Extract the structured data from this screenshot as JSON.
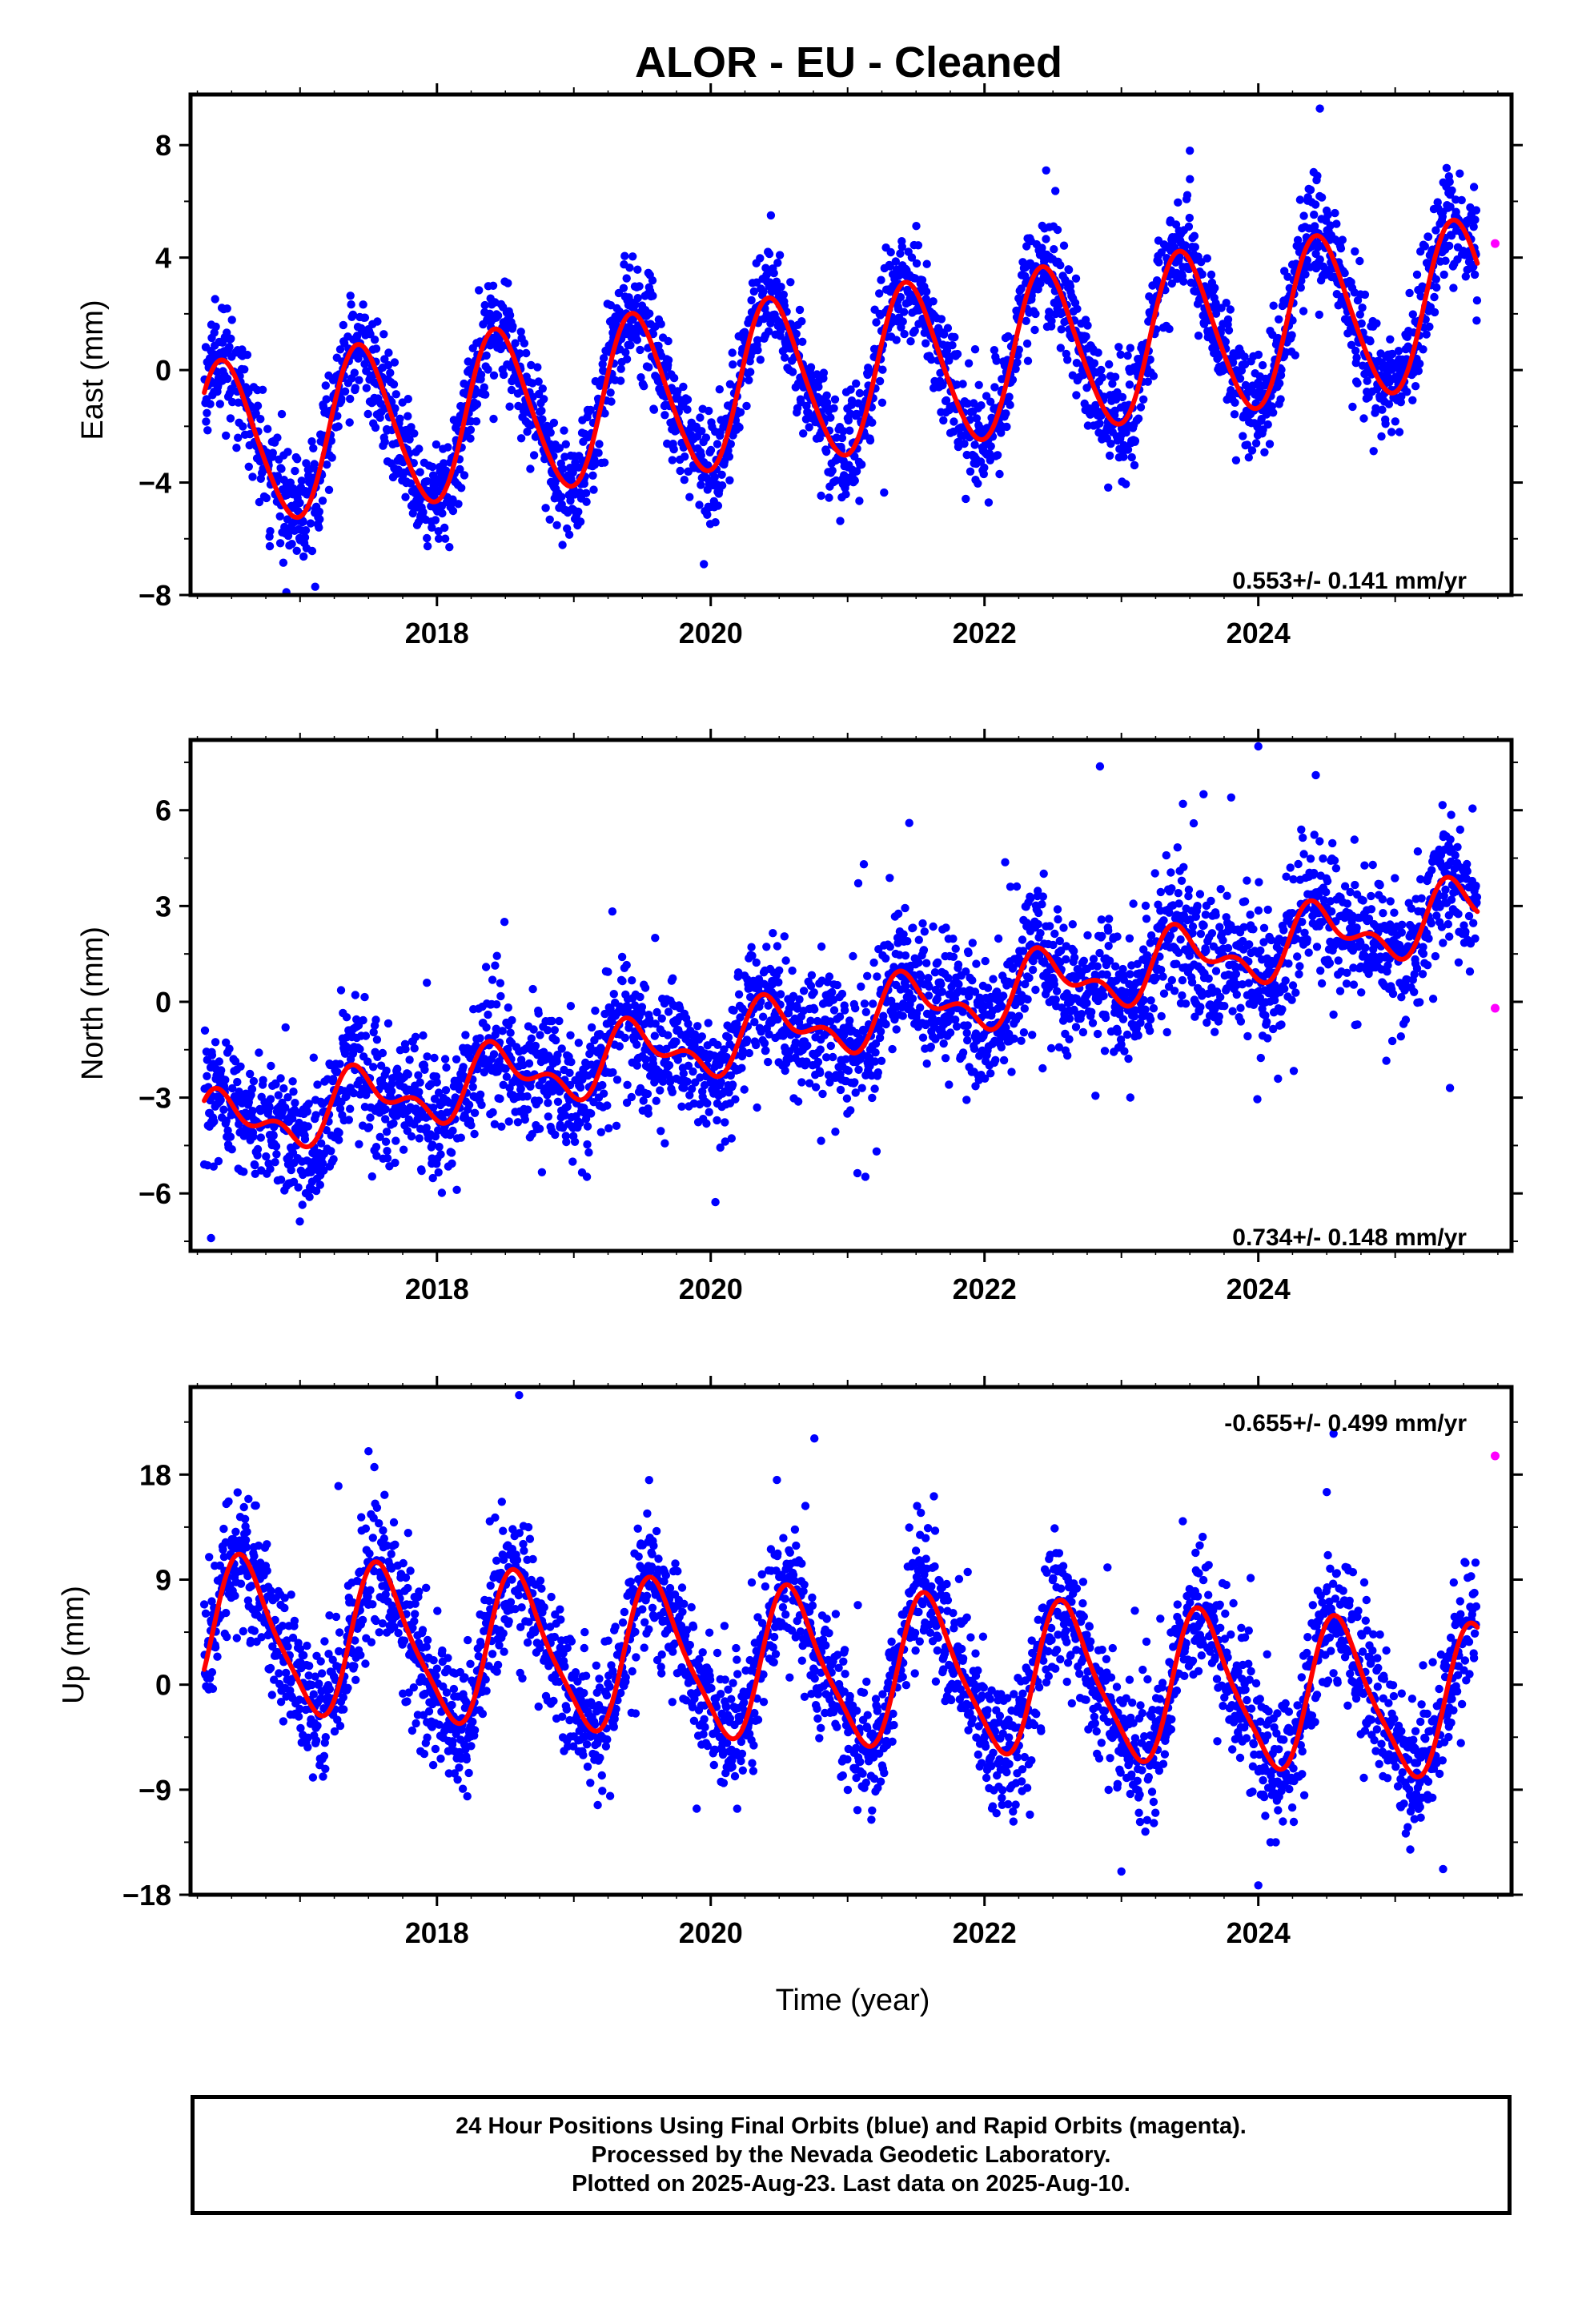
{
  "chart_data": [
    {
      "type": "scatter",
      "title": "ALOR  - EU - Cleaned",
      "xlabel": "",
      "ylabel": "East (mm)",
      "xlim": [
        2016.2,
        2025.85
      ],
      "ylim": [
        -8,
        9.8
      ],
      "yticks": [
        -8,
        -4,
        0,
        4,
        8
      ],
      "xticks": [
        2018,
        2020,
        2022,
        2024
      ],
      "rate_label": "0.553+/- 0.141 mm/yr",
      "rate_position": "bottom-right",
      "colors": {
        "final": "#0000ff",
        "rapid": "#ff00ff",
        "model": "#ff0000"
      },
      "series": [
        {
          "name": "Final Orbits (blue)",
          "x_range": [
            2016.3,
            2025.6
          ],
          "trend_mm_per_yr": 0.553,
          "offset": -2.75,
          "annual_amplitude": 2.9,
          "annual_peak": 2016.45,
          "semiannual_amplitude": 0.3,
          "noise_sd": 0.95,
          "outliers": [
            {
              "x": 2024.45,
              "y": 9.3
            },
            {
              "x": 2022.45,
              "y": 7.1
            },
            {
              "x": 2023.5,
              "y": 7.8
            },
            {
              "x": 2016.9,
              "y": -7.9
            },
            {
              "x": 2019.95,
              "y": -6.9
            }
          ]
        },
        {
          "name": "Rapid Orbits (magenta)",
          "points": [
            {
              "x": 2025.73,
              "y": 4.5
            }
          ]
        },
        {
          "name": "model",
          "x_range": [
            2016.3,
            2025.6
          ]
        }
      ]
    },
    {
      "type": "scatter",
      "title": "",
      "xlabel": "",
      "ylabel": "North (mm)",
      "xlim": [
        2016.2,
        2025.85
      ],
      "ylim": [
        -7.8,
        8.2
      ],
      "yticks": [
        -6,
        -3,
        0,
        3,
        6
      ],
      "xticks": [
        2018,
        2020,
        2022,
        2024
      ],
      "rate_label": "0.734+/- 0.148 mm/yr",
      "rate_position": "bottom-right",
      "colors": {
        "final": "#0000ff",
        "rapid": "#ff00ff",
        "model": "#ff0000"
      },
      "series": [
        {
          "name": "Final Orbits (blue)",
          "x_range": [
            2016.3,
            2025.6
          ],
          "trend_mm_per_yr": 0.734,
          "offset": -4.0,
          "annual_amplitude": 0.85,
          "annual_peak": 2016.45,
          "semiannual_amplitude": 0.5,
          "noise_sd": 1.0,
          "outliers": [
            {
              "x": 2024.0,
              "y": 8.0
            },
            {
              "x": 2023.6,
              "y": 6.5
            },
            {
              "x": 2023.45,
              "y": 6.2
            },
            {
              "x": 2024.42,
              "y": 7.1
            },
            {
              "x": 2025.4,
              "y": -2.7
            },
            {
              "x": 2016.35,
              "y": -7.4
            },
            {
              "x": 2021.45,
              "y": 5.6
            }
          ]
        },
        {
          "name": "Rapid Orbits (magenta)",
          "points": [
            {
              "x": 2025.73,
              "y": -0.2
            }
          ]
        },
        {
          "name": "model",
          "x_range": [
            2016.3,
            2025.6
          ]
        }
      ]
    },
    {
      "type": "scatter",
      "title": "",
      "xlabel": "Time (year)",
      "ylabel": "Up (mm)",
      "xlim": [
        2016.2,
        2025.85
      ],
      "ylim": [
        -18,
        25.5
      ],
      "yticks": [
        -18,
        -9,
        0,
        9,
        18
      ],
      "xticks": [
        2018,
        2020,
        2022,
        2024
      ],
      "rate_label": "-0.655+/- 0.499 mm/yr",
      "rate_position": "top-right",
      "colors": {
        "final": "#0000ff",
        "rapid": "#ff00ff",
        "model": "#ff0000"
      },
      "series": [
        {
          "name": "Final Orbits (blue)",
          "x_range": [
            2016.3,
            2025.6
          ],
          "trend_mm_per_yr": -0.655,
          "offset": 4.3,
          "annual_amplitude": 6.3,
          "annual_peak": 2016.6,
          "semiannual_amplitude": 1.3,
          "noise_sd": 2.8,
          "outliers": [
            {
              "x": 2018.6,
              "y": 24.8
            },
            {
              "x": 2024.5,
              "y": 16.5
            },
            {
              "x": 2023.0,
              "y": -16.0
            },
            {
              "x": 2024.0,
              "y": -17.2
            },
            {
              "x": 2025.35,
              "y": -15.8
            },
            {
              "x": 2024.55,
              "y": 21.5
            },
            {
              "x": 2017.5,
              "y": 20.0
            }
          ]
        },
        {
          "name": "Rapid Orbits (magenta)",
          "points": [
            {
              "x": 2025.73,
              "y": 19.6
            }
          ]
        },
        {
          "name": "model",
          "x_range": [
            2016.3,
            2025.6
          ]
        }
      ]
    }
  ],
  "footer": {
    "line1": "24 Hour Positions Using Final Orbits (blue) and Rapid Orbits (magenta).",
    "line2": "Processed by the Nevada Geodetic Laboratory.",
    "line3": "Plotted on 2025-Aug-23. Last data on 2025-Aug-10."
  }
}
